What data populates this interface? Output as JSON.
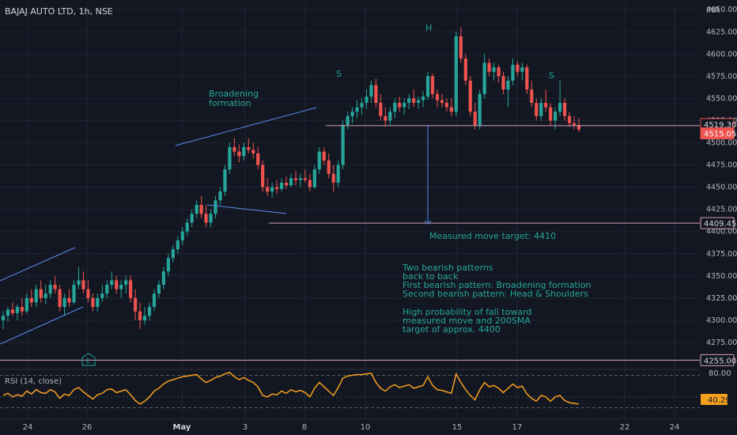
{
  "header": {
    "symbol_label": "BAJAJ AUTO LTD, 1h, NSE",
    "currency": "INR"
  },
  "colors": {
    "background": "#131722",
    "grid": "#1f2433",
    "up": "#26a69a",
    "down": "#ef5350",
    "annotation": "#26a69a",
    "trendline": "#5b8def",
    "level_line": "#d8a0b8",
    "rsi_line": "#f59f1f"
  },
  "y_axis": {
    "ticks": [
      "4650.00",
      "4625.00",
      "4600.00",
      "4575.00",
      "4550.00",
      "4525.00",
      "4500.00",
      "4475.00",
      "4450.00",
      "4425.00",
      "4400.00",
      "4375.00",
      "4350.00",
      "4325.00",
      "4300.00",
      "4275.00"
    ]
  },
  "x_axis": {
    "ticks": [
      "24",
      "26",
      "May",
      "3",
      "8",
      "10",
      "15",
      "17",
      "22",
      "24"
    ]
  },
  "price_badges": [
    {
      "label": "4519.30",
      "value": 4519.3,
      "color": "#ef5350",
      "style": "outline"
    },
    {
      "label": "4515.05",
      "value": 4515.05,
      "color": "#ef5350",
      "style": "filled"
    },
    {
      "label": "4409.45",
      "value": 4409.45,
      "color": "#d8a0b8",
      "style": "outline"
    },
    {
      "label": "4255.00",
      "value": 4255.0,
      "color": "#d8a0b8",
      "style": "outline"
    }
  ],
  "annotations": {
    "broadening_line1": "Broadening",
    "broadening_line2": "formation",
    "head": "H",
    "left_shoulder": "S",
    "right_shoulder": "S",
    "measured_target": "Measured move target: 4410",
    "notes": [
      "Two bearish patterns",
      "back to back",
      "First bearish pattern: Broadening formation",
      "Second bearish pattern: Head & Shoulders",
      "",
      "High probability of fall toward",
      "measured move and 200SMA",
      "target of approx. 4400"
    ],
    "earnings_marker": "E"
  },
  "rsi": {
    "label": "RSI (14, close)",
    "upper": "80.00",
    "value_label": "40.29"
  },
  "chart_data": {
    "type": "candlestick",
    "title": "BAJAJ AUTO LTD, 1h, NSE",
    "ylim": [
      4250,
      4660
    ],
    "x_tick_labels": [
      "24",
      "26",
      "May",
      "3",
      "8",
      "10",
      "15",
      "17",
      "22",
      "24"
    ],
    "candles": [
      [
        4300,
        4310,
        4290,
        4305
      ],
      [
        4305,
        4315,
        4298,
        4312
      ],
      [
        4312,
        4320,
        4305,
        4308
      ],
      [
        4308,
        4318,
        4300,
        4315
      ],
      [
        4315,
        4325,
        4305,
        4310
      ],
      [
        4310,
        4330,
        4308,
        4325
      ],
      [
        4325,
        4335,
        4315,
        4320
      ],
      [
        4320,
        4340,
        4315,
        4335
      ],
      [
        4335,
        4345,
        4320,
        4325
      ],
      [
        4325,
        4340,
        4318,
        4330
      ],
      [
        4330,
        4345,
        4325,
        4340
      ],
      [
        4340,
        4350,
        4330,
        4335
      ],
      [
        4335,
        4340,
        4310,
        4315
      ],
      [
        4315,
        4330,
        4305,
        4325
      ],
      [
        4325,
        4335,
        4315,
        4320
      ],
      [
        4320,
        4345,
        4318,
        4340
      ],
      [
        4340,
        4360,
        4335,
        4345
      ],
      [
        4345,
        4355,
        4330,
        4335
      ],
      [
        4335,
        4345,
        4320,
        4325
      ],
      [
        4325,
        4330,
        4310,
        4315
      ],
      [
        4315,
        4330,
        4310,
        4325
      ],
      [
        4325,
        4340,
        4320,
        4330
      ],
      [
        4330,
        4345,
        4325,
        4340
      ],
      [
        4340,
        4355,
        4335,
        4345
      ],
      [
        4345,
        4350,
        4330,
        4335
      ],
      [
        4335,
        4345,
        4325,
        4340
      ],
      [
        4340,
        4350,
        4330,
        4345
      ],
      [
        4345,
        4350,
        4320,
        4325
      ],
      [
        4325,
        4335,
        4300,
        4310
      ],
      [
        4310,
        4320,
        4290,
        4300
      ],
      [
        4300,
        4315,
        4295,
        4305
      ],
      [
        4305,
        4320,
        4300,
        4315
      ],
      [
        4315,
        4335,
        4310,
        4330
      ],
      [
        4330,
        4345,
        4325,
        4340
      ],
      [
        4340,
        4360,
        4335,
        4355
      ],
      [
        4355,
        4375,
        4350,
        4370
      ],
      [
        4370,
        4385,
        4365,
        4380
      ],
      [
        4380,
        4395,
        4375,
        4390
      ],
      [
        4390,
        4405,
        4385,
        4400
      ],
      [
        4400,
        4415,
        4395,
        4410
      ],
      [
        4410,
        4425,
        4405,
        4420
      ],
      [
        4420,
        4435,
        4415,
        4430
      ],
      [
        4430,
        4440,
        4415,
        4420
      ],
      [
        4420,
        4430,
        4405,
        4410
      ],
      [
        4410,
        4425,
        4405,
        4420
      ],
      [
        4420,
        4440,
        4415,
        4435
      ],
      [
        4435,
        4450,
        4430,
        4445
      ],
      [
        4445,
        4475,
        4440,
        4470
      ],
      [
        4470,
        4500,
        4465,
        4495
      ],
      [
        4495,
        4505,
        4485,
        4490
      ],
      [
        4490,
        4498,
        4478,
        4485
      ],
      [
        4485,
        4500,
        4480,
        4495
      ],
      [
        4495,
        4505,
        4488,
        4492
      ],
      [
        4492,
        4500,
        4482,
        4488
      ],
      [
        4488,
        4495,
        4470,
        4475
      ],
      [
        4475,
        4480,
        4445,
        4450
      ],
      [
        4450,
        4460,
        4440,
        4445
      ],
      [
        4445,
        4455,
        4438,
        4450
      ],
      [
        4450,
        4458,
        4442,
        4448
      ],
      [
        4448,
        4460,
        4445,
        4455
      ],
      [
        4455,
        4462,
        4448,
        4452
      ],
      [
        4452,
        4465,
        4450,
        4460
      ],
      [
        4460,
        4468,
        4452,
        4458
      ],
      [
        4458,
        4465,
        4450,
        4460
      ],
      [
        4460,
        4470,
        4455,
        4458
      ],
      [
        4458,
        4465,
        4445,
        4450
      ],
      [
        4450,
        4475,
        4448,
        4470
      ],
      [
        4470,
        4495,
        4465,
        4490
      ],
      [
        4490,
        4495,
        4475,
        4480
      ],
      [
        4480,
        4488,
        4460,
        4465
      ],
      [
        4465,
        4475,
        4445,
        4455
      ],
      [
        4455,
        4480,
        4450,
        4475
      ],
      [
        4475,
        4525,
        4470,
        4520
      ],
      [
        4520,
        4535,
        4515,
        4530
      ],
      [
        4530,
        4540,
        4522,
        4535
      ],
      [
        4535,
        4548,
        4528,
        4540
      ],
      [
        4540,
        4550,
        4532,
        4545
      ],
      [
        4545,
        4560,
        4538,
        4552
      ],
      [
        4552,
        4570,
        4545,
        4565
      ],
      [
        4565,
        4572,
        4540,
        4545
      ],
      [
        4545,
        4555,
        4525,
        4530
      ],
      [
        4530,
        4540,
        4518,
        4525
      ],
      [
        4525,
        4540,
        4520,
        4535
      ],
      [
        4535,
        4550,
        4528,
        4545
      ],
      [
        4545,
        4552,
        4535,
        4540
      ],
      [
        4540,
        4550,
        4532,
        4545
      ],
      [
        4545,
        4555,
        4538,
        4550
      ],
      [
        4550,
        4560,
        4540,
        4545
      ],
      [
        4545,
        4552,
        4538,
        4548
      ],
      [
        4548,
        4558,
        4540,
        4552
      ],
      [
        4552,
        4580,
        4548,
        4575
      ],
      [
        4575,
        4578,
        4550,
        4555
      ],
      [
        4555,
        4560,
        4540,
        4548
      ],
      [
        4548,
        4555,
        4540,
        4545
      ],
      [
        4545,
        4550,
        4535,
        4540
      ],
      [
        4540,
        4550,
        4530,
        4535
      ],
      [
        4535,
        4625,
        4530,
        4620
      ],
      [
        4620,
        4630,
        4590,
        4595
      ],
      [
        4595,
        4600,
        4565,
        4570
      ],
      [
        4570,
        4575,
        4530,
        4535
      ],
      [
        4535,
        4545,
        4515,
        4520
      ],
      [
        4520,
        4560,
        4515,
        4555
      ],
      [
        4555,
        4600,
        4550,
        4590
      ],
      [
        4590,
        4595,
        4575,
        4580
      ],
      [
        4580,
        4590,
        4570,
        4585
      ],
      [
        4585,
        4588,
        4568,
        4575
      ],
      [
        4575,
        4580,
        4555,
        4560
      ],
      [
        4560,
        4575,
        4540,
        4570
      ],
      [
        4570,
        4595,
        4565,
        4588
      ],
      [
        4588,
        4592,
        4575,
        4580
      ],
      [
        4580,
        4590,
        4570,
        4585
      ],
      [
        4585,
        4588,
        4555,
        4560
      ],
      [
        4560,
        4570,
        4540,
        4545
      ],
      [
        4545,
        4550,
        4525,
        4530
      ],
      [
        4530,
        4550,
        4525,
        4545
      ],
      [
        4545,
        4560,
        4535,
        4540
      ],
      [
        4540,
        4545,
        4520,
        4525
      ],
      [
        4525,
        4540,
        4515,
        4535
      ],
      [
        4535,
        4570,
        4530,
        4545
      ],
      [
        4545,
        4550,
        4525,
        4530
      ],
      [
        4530,
        4535,
        4518,
        4522
      ],
      [
        4522,
        4530,
        4515,
        4520
      ],
      [
        4520,
        4528,
        4512,
        4515
      ]
    ],
    "rsi_values": [
      52,
      55,
      50,
      53,
      51,
      58,
      54,
      60,
      56,
      55,
      60,
      57,
      48,
      54,
      52,
      60,
      63,
      57,
      52,
      47,
      53,
      55,
      60,
      61,
      56,
      58,
      60,
      53,
      45,
      40,
      44,
      50,
      58,
      62,
      68,
      72,
      74,
      76,
      78,
      79,
      80,
      81,
      75,
      70,
      73,
      77,
      79,
      82,
      84,
      78,
      74,
      77,
      73,
      70,
      64,
      52,
      50,
      54,
      53,
      58,
      55,
      60,
      57,
      59,
      56,
      50,
      62,
      70,
      64,
      58,
      52,
      63,
      76,
      79,
      80,
      81,
      81,
      82,
      83,
      70,
      62,
      58,
      64,
      67,
      63,
      65,
      67,
      62,
      64,
      66,
      78,
      66,
      60,
      59,
      57,
      55,
      82,
      70,
      60,
      52,
      46,
      60,
      70,
      64,
      66,
      62,
      56,
      62,
      68,
      63,
      65,
      54,
      48,
      44,
      52,
      50,
      44,
      50,
      52,
      45,
      42,
      41,
      40
    ],
    "earnings_marker_index": 30
  }
}
